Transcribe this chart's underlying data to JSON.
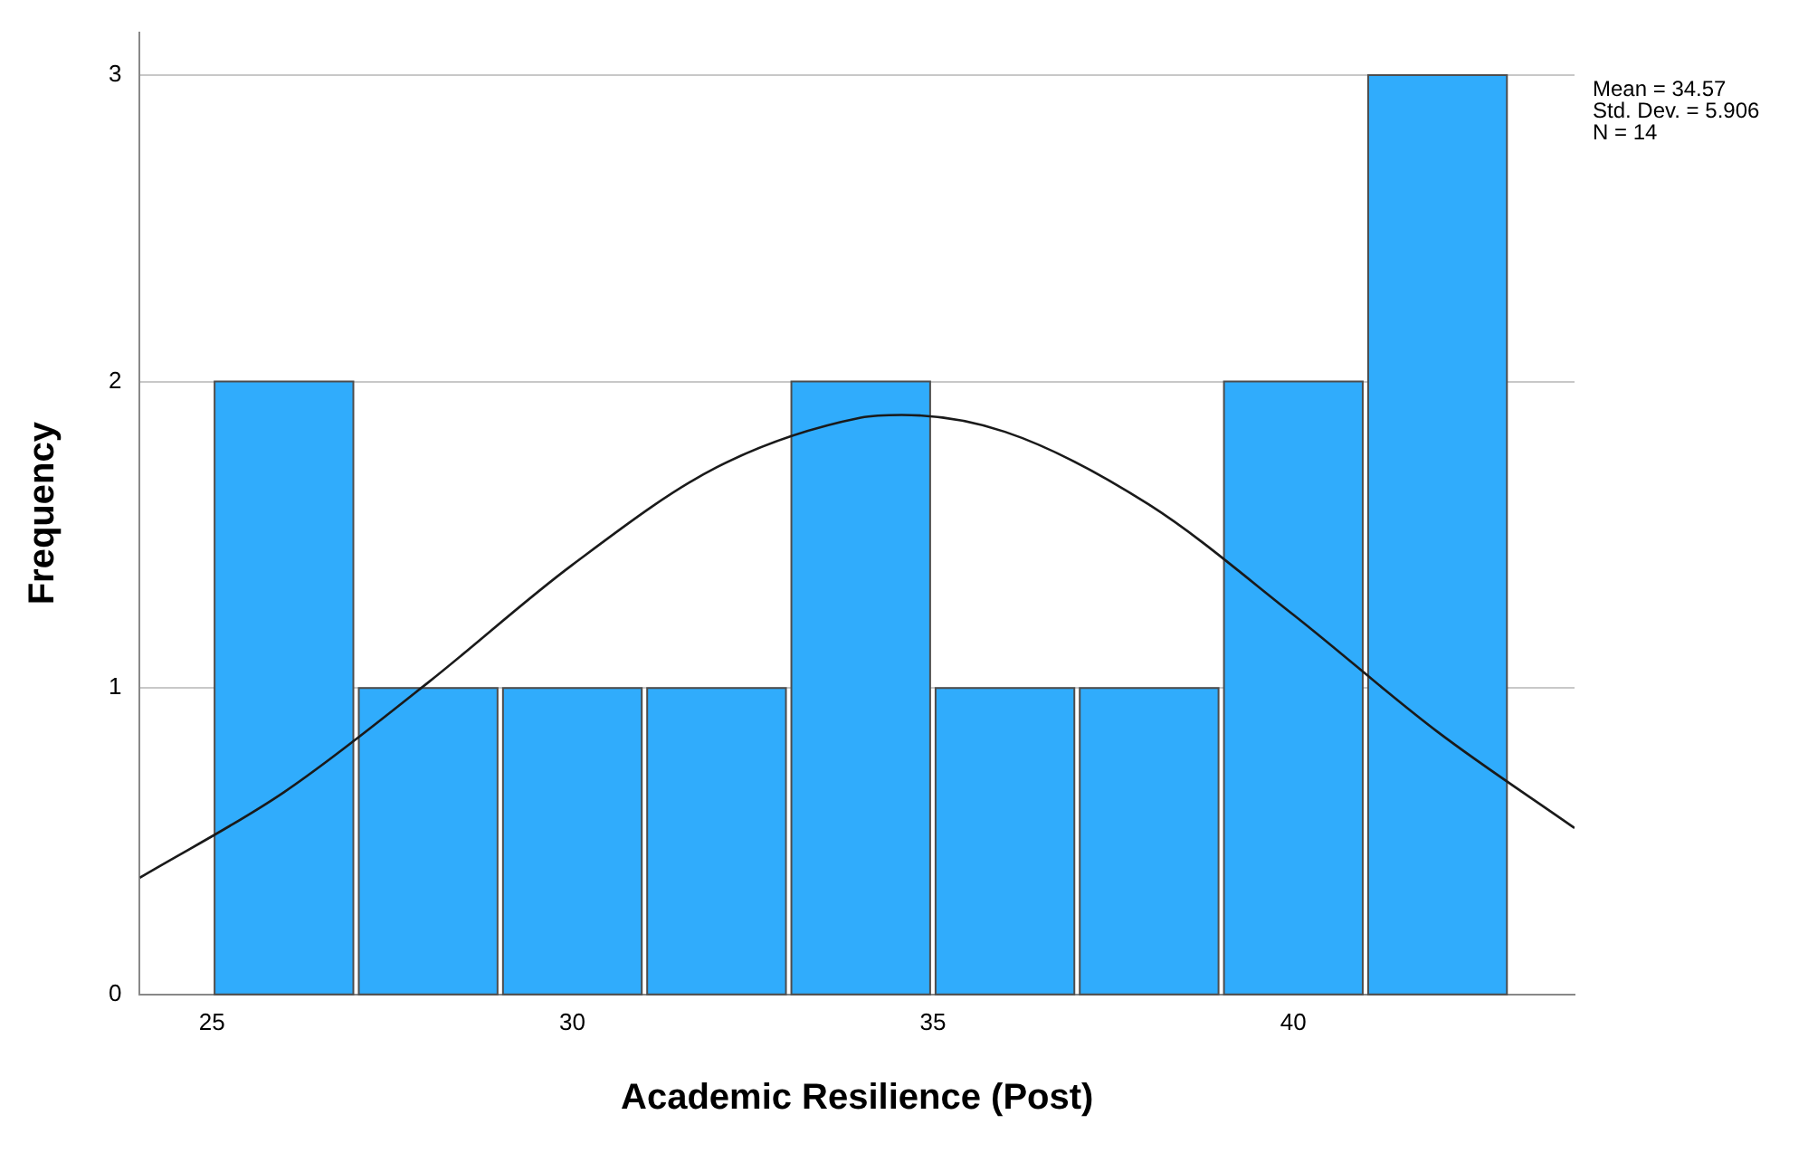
{
  "chart_data": {
    "type": "histogram",
    "xlabel": "Academic Resilience (Post)",
    "ylabel": "Frequency",
    "bins": [
      25,
      27,
      29,
      31,
      33,
      35,
      37,
      39,
      41,
      43
    ],
    "values": [
      2,
      1,
      1,
      1,
      2,
      1,
      1,
      2,
      3
    ],
    "color": "#30acfc",
    "xlim": [
      24,
      43.9
    ],
    "xticks": [
      25,
      30,
      35,
      40
    ],
    "ylim": [
      0,
      3.14
    ],
    "yticks": [
      0,
      1,
      2,
      3
    ],
    "grid": "y",
    "series": [
      {
        "type": "line",
        "color": "#1a1a1a",
        "x": [
          24,
          26,
          28,
          30,
          32,
          34,
          34.57,
          36,
          38,
          40,
          42,
          43.9
        ],
        "values": [
          0.381,
          0.66,
          1.018,
          1.402,
          1.72,
          1.882,
          1.891,
          1.836,
          1.598,
          1.239,
          0.857,
          0.543
        ]
      }
    ],
    "annotations": [
      "Mean = 34.57",
      "Std. Dev. = 5.906",
      "N = 14"
    ]
  }
}
